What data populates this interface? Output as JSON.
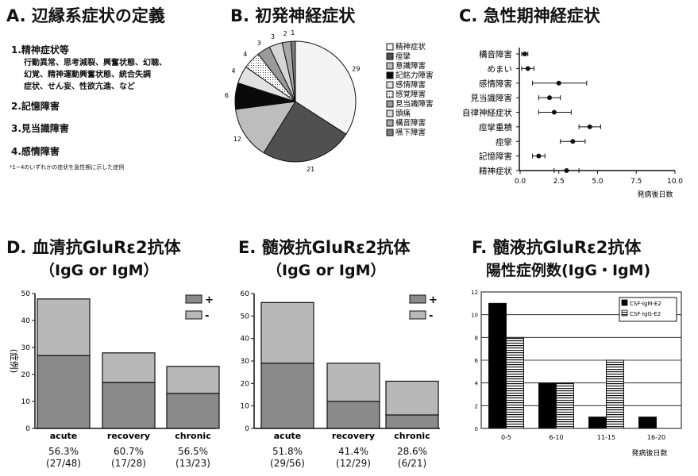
{
  "panelA": {
    "title": "A. 辺縁系症状の定義",
    "item1": "1.精神症状等",
    "item1_detail1": "行動異常、思考減裂、興奮状態、幻聴、",
    "item1_detail2": "幻覚、精神運動興奮状態、統合失調",
    "item1_detail3": "症状、せん妄、性欲亢進、など",
    "item2": "2.記憶障害",
    "item3": "3.見当識障害",
    "item4": "4.感情障害",
    "note": "*1~4のいずれかの症状を急性期に示した症例"
  },
  "chart_data": [
    {
      "id": "B",
      "type": "pie",
      "title": "B. 初発神経症状",
      "labels": [
        "精神症状",
        "痙攣",
        "意識障害",
        "記銘力障害",
        "感情障害",
        "感覚障害",
        "見当識障害",
        "頭痛",
        "構音障害",
        "嚥下障害"
      ],
      "values": [
        29,
        21,
        12,
        6,
        4,
        4,
        3,
        3,
        2,
        1
      ],
      "colors": [
        "#f4f4f4",
        "#505050",
        "#bdbdbd",
        "#0a0a0a",
        "#e2e2e2",
        "#ffffff",
        "#9a9a9a",
        "#d6d6d6",
        "#a8a8a8",
        "#7c7c7c"
      ]
    },
    {
      "id": "C",
      "type": "scatter",
      "title": "C. 急性期神経症状",
      "categories": [
        "構音障害",
        "めまい",
        "感情障害",
        "見当識障害",
        "自律神経症状",
        "痙攣重積",
        "痙攣",
        "記憶障害",
        "精神症状"
      ],
      "values": [
        0.3,
        0.5,
        2.5,
        1.9,
        2.2,
        4.5,
        3.4,
        1.2,
        3.0
      ],
      "err_low": [
        0.1,
        0.1,
        0.8,
        1.2,
        1.2,
        3.8,
        2.6,
        0.8,
        2.2
      ],
      "err_high": [
        0.5,
        0.9,
        4.3,
        2.6,
        3.3,
        5.2,
        4.2,
        1.6,
        3.8
      ],
      "xticks": [
        "0.0",
        "2.5",
        "5.0",
        "7.5",
        "10.0"
      ],
      "xlim": [
        0,
        10
      ],
      "xlabel": "発病後日数"
    },
    {
      "id": "D",
      "type": "bar",
      "title": "D. 血清抗GluRε2抗体",
      "subtitle": "（IgG or IgM）",
      "categories": [
        "acute",
        "recovery",
        "chronic"
      ],
      "series": [
        {
          "name": "+",
          "values": [
            27,
            17,
            13
          ],
          "color": "#8a8a8a"
        },
        {
          "name": "-",
          "values": [
            21,
            11,
            10
          ],
          "color": "#b8b8b8"
        }
      ],
      "ylabel": "(症例)",
      "ylim": [
        0,
        50
      ],
      "yticks": [
        "0",
        "10",
        "20",
        "30",
        "40",
        "50"
      ],
      "pct": [
        "56.3%",
        "60.7%",
        "56.5%"
      ],
      "frac": [
        "(27/48)",
        "(17/28)",
        "(13/23)"
      ]
    },
    {
      "id": "E",
      "type": "bar",
      "title": "E. 髄液抗GluRε2抗体",
      "subtitle": "（IgG or IgM）",
      "categories": [
        "acute",
        "recovery",
        "chronic"
      ],
      "series": [
        {
          "name": "+",
          "values": [
            29,
            12,
            6
          ],
          "color": "#8a8a8a"
        },
        {
          "name": "-",
          "values": [
            27,
            17,
            15
          ],
          "color": "#b8b8b8"
        }
      ],
      "ylim": [
        0,
        60
      ],
      "yticks": [
        "0",
        "10",
        "20",
        "30",
        "40",
        "50",
        "60"
      ],
      "pct": [
        "51.8%",
        "41.4%",
        "28.6%"
      ],
      "frac": [
        "(29/56)",
        "(12/29)",
        "(6/21)"
      ]
    },
    {
      "id": "F",
      "type": "bar",
      "title": "F. 髄液抗GluRε2抗体",
      "subtitle": "陽性症例数(IgG・IgM)",
      "categories": [
        "0-5",
        "6-10",
        "11-15",
        "16-20"
      ],
      "series": [
        {
          "name": "CSF-IgM-E2",
          "values": [
            11,
            4,
            1,
            1
          ],
          "color": "#000000"
        },
        {
          "name": "CSF-IgG-E2",
          "values": [
            8,
            4,
            6,
            0
          ],
          "color": "hatch"
        }
      ],
      "ylim": [
        0,
        12
      ],
      "yticks": [
        "0",
        "2",
        "4",
        "6",
        "8",
        "10",
        "12"
      ],
      "xlabel": "発病後日数",
      "grid": true
    }
  ]
}
